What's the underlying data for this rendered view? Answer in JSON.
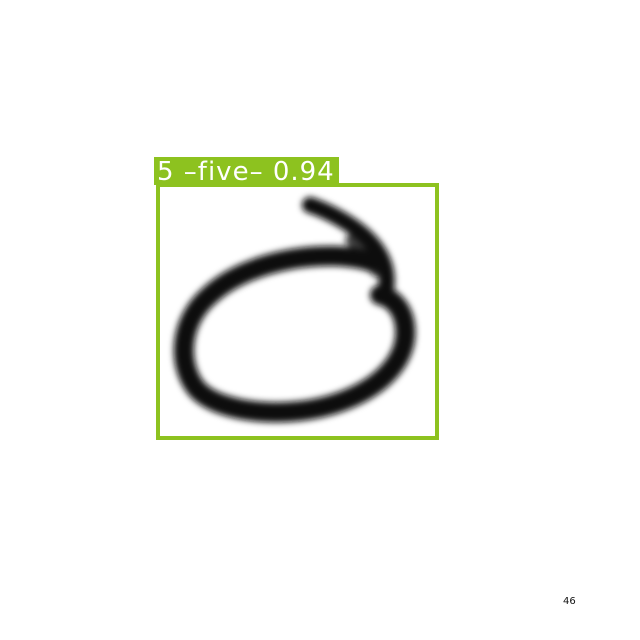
{
  "detection": {
    "label": "5 –five– 0.94",
    "class_id": "5",
    "class_name": "five",
    "confidence": 0.94,
    "color": "#8dc21f"
  },
  "digit_image": {
    "stroke_color": "#111111"
  },
  "page_number": "46"
}
